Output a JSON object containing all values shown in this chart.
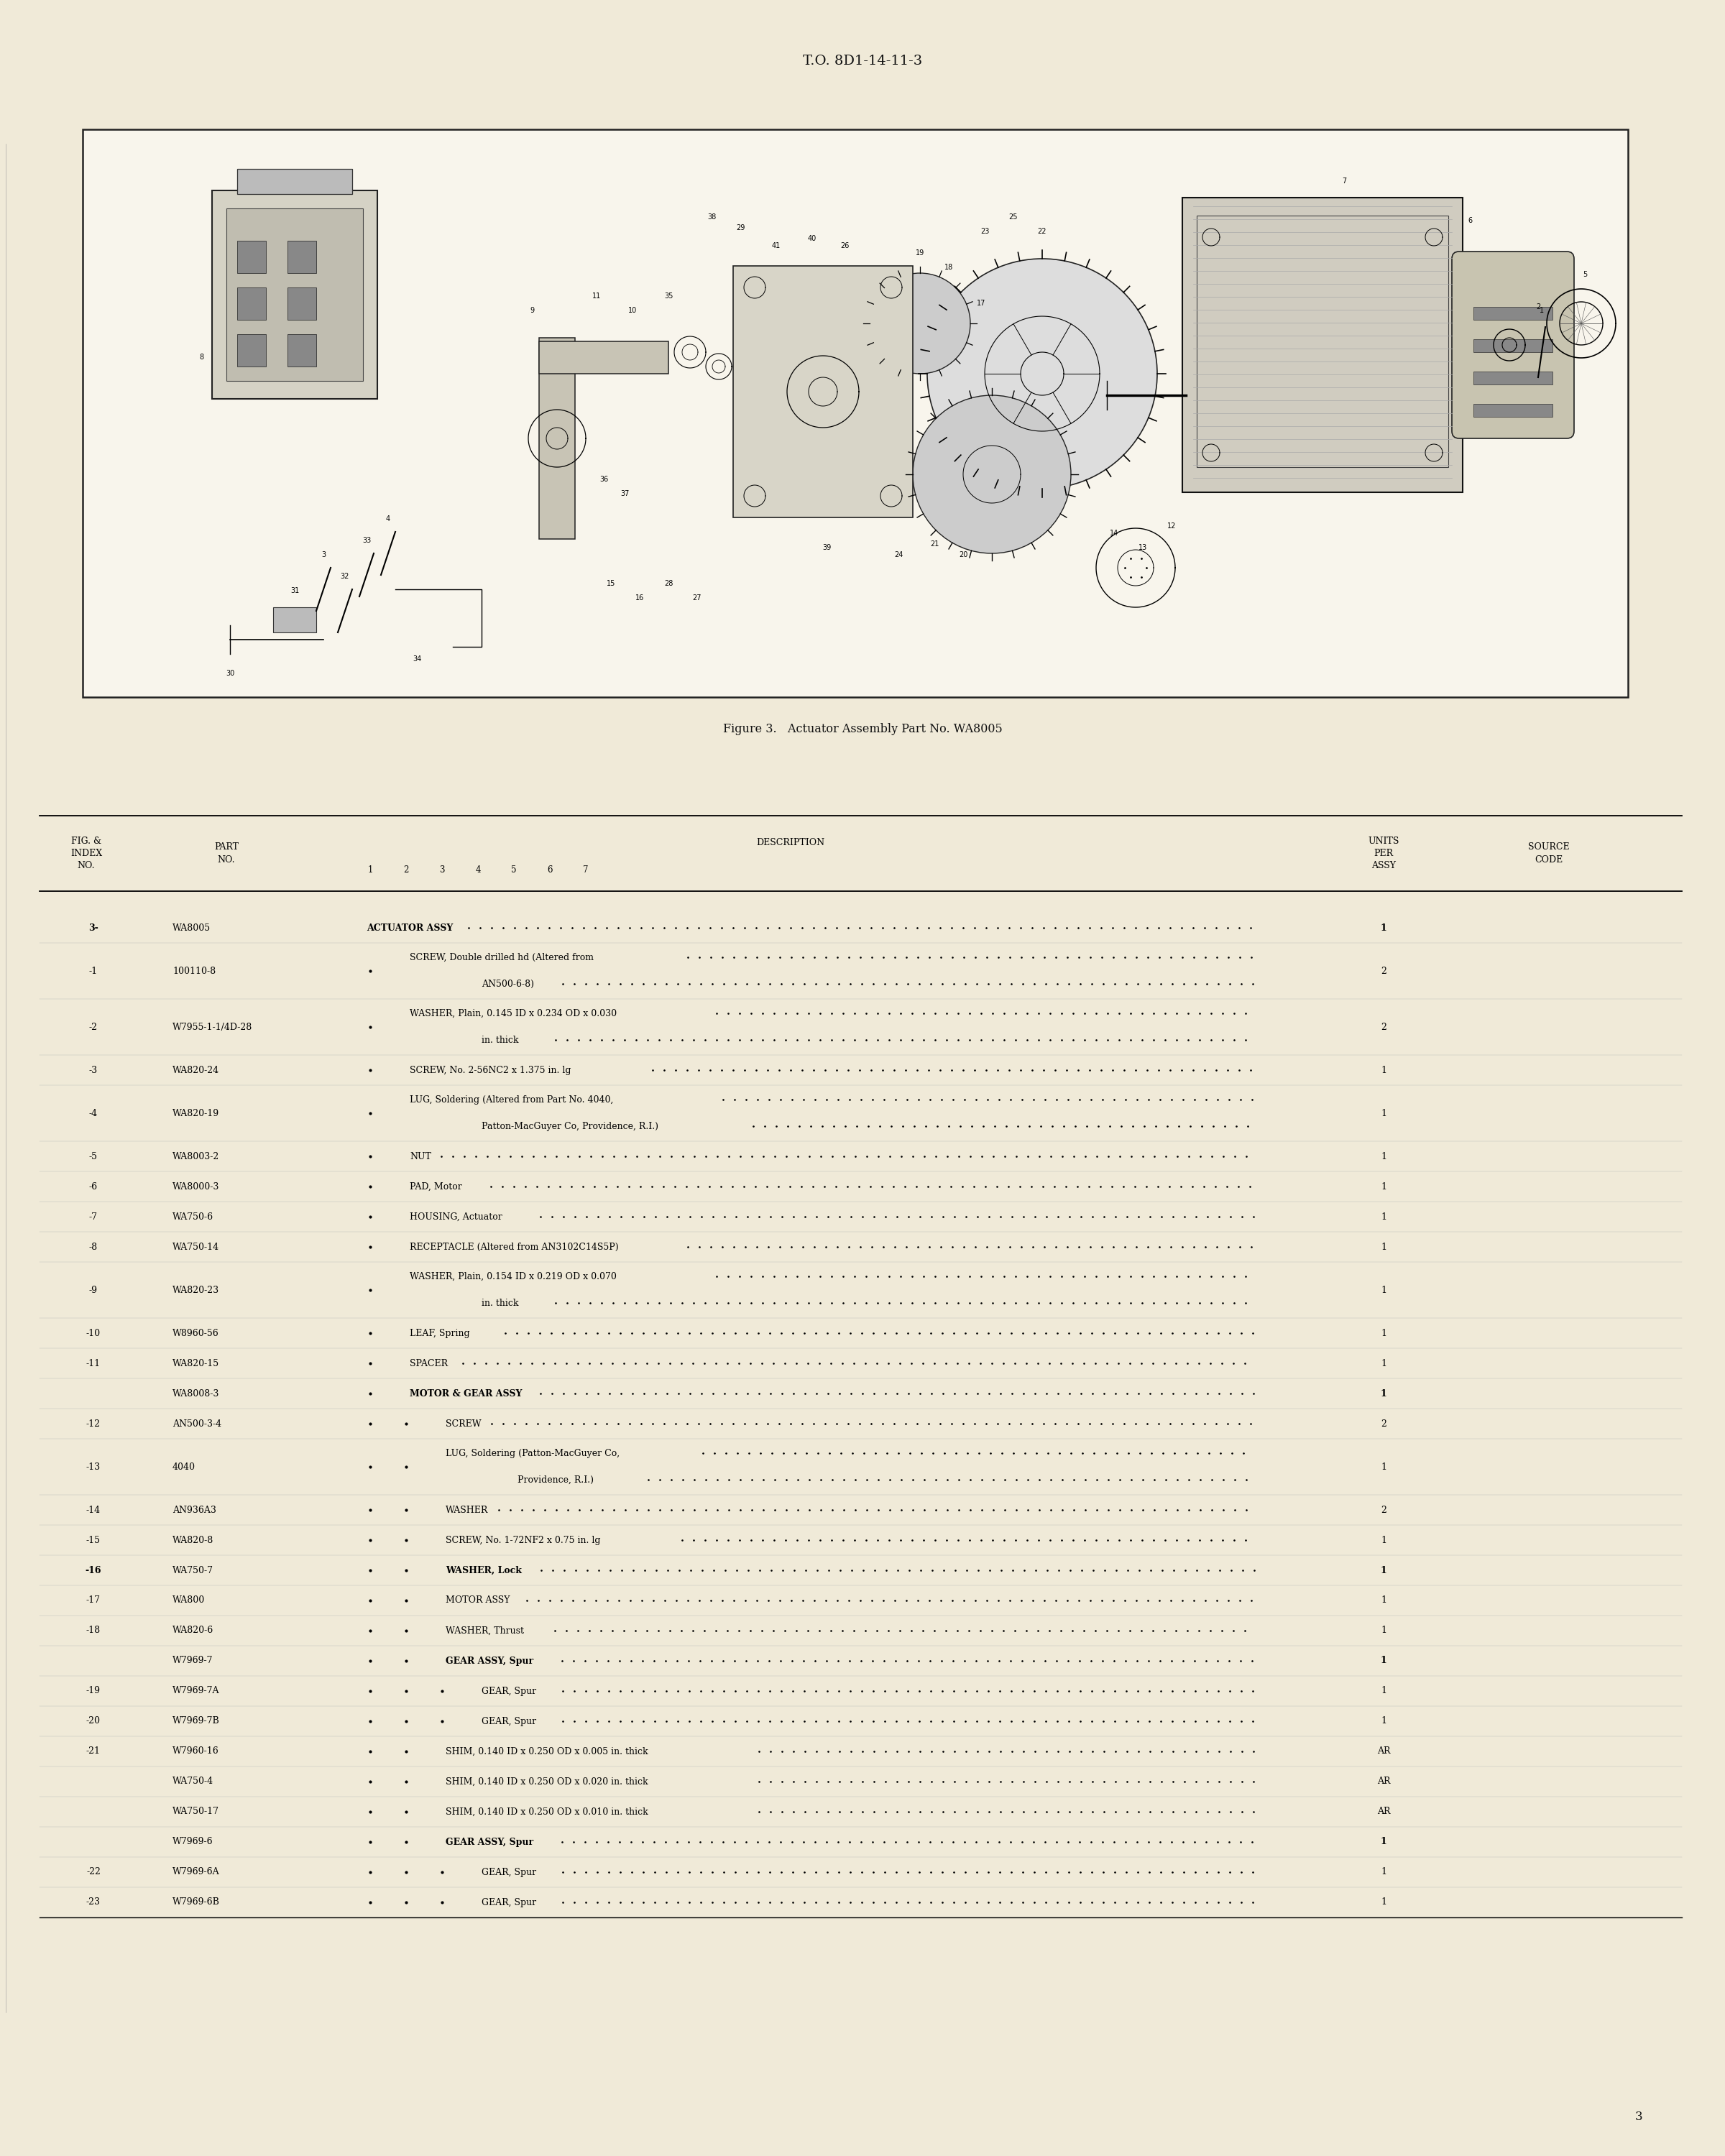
{
  "page_bg": "#f0ead8",
  "header_text": "T.O. 8D1-14-11-3",
  "figure_caption": "Figure 3.   Actuator Assembly Part No. WA8005",
  "page_number": "3",
  "table_rows": [
    [
      "3-",
      "WA8005",
      0,
      "ACTUATOR ASSY",
      "1"
    ],
    [
      "-1",
      "100110-8",
      1,
      "SCREW, Double drilled hd (Altered from\nAN500-6-8)",
      "2"
    ],
    [
      "-2",
      "W7955-1-1/4D-28",
      1,
      "WASHER, Plain, 0.145 ID x 0.234 OD x 0.030\nin. thick",
      "2"
    ],
    [
      "-3",
      "WA820-24",
      1,
      "SCREW, No. 2-56NC2 x 1.375 in. lg",
      "1"
    ],
    [
      "-4",
      "WA820-19",
      1,
      "LUG, Soldering (Altered from Part No. 4040,\nPatton-MacGuyer Co, Providence, R.I.)",
      "1"
    ],
    [
      "-5",
      "WA8003-2",
      1,
      "NUT",
      "1"
    ],
    [
      "-6",
      "WA8000-3",
      1,
      "PAD, Motor",
      "1"
    ],
    [
      "-7",
      "WA750-6",
      1,
      "HOUSING, Actuator",
      "1"
    ],
    [
      "-8",
      "WA750-14",
      1,
      "RECEPTACLE (Altered from AN3102C14S5P)",
      "1"
    ],
    [
      "-9",
      "WA820-23",
      1,
      "WASHER, Plain, 0.154 ID x 0.219 OD x 0.070\nin. thick",
      "1"
    ],
    [
      "-10",
      "W8960-56",
      1,
      "LEAF, Spring",
      "1"
    ],
    [
      "-11",
      "WA820-15",
      1,
      "SPACER",
      "1"
    ],
    [
      "",
      "WA8008-3",
      1,
      "MOTOR & GEAR ASSY",
      "1"
    ],
    [
      "-12",
      "AN500-3-4",
      2,
      "SCREW",
      "2"
    ],
    [
      "-13",
      "4040",
      2,
      "LUG, Soldering (Patton-MacGuyer Co,\nProvidence, R.I.)",
      "1"
    ],
    [
      "-14",
      "AN936A3",
      2,
      "WASHER",
      "2"
    ],
    [
      "-15",
      "WA820-8",
      2,
      "SCREW, No. 1-72NF2 x 0.75 in. lg",
      "1"
    ],
    [
      "-16",
      "WA750-7",
      2,
      "WASHER, Lock",
      "1"
    ],
    [
      "-17",
      "WA800",
      2,
      "MOTOR ASSY",
      "1"
    ],
    [
      "-18",
      "WA820-6",
      2,
      "WASHER, Thrust",
      "1"
    ],
    [
      "",
      "W7969-7",
      2,
      "GEAR ASSY, Spur",
      "1"
    ],
    [
      "-19",
      "W7969-7A",
      3,
      "GEAR, Spur",
      "1"
    ],
    [
      "-20",
      "W7969-7B",
      3,
      "GEAR, Spur",
      "1"
    ],
    [
      "-21",
      "W7960-16",
      2,
      "SHIM, 0.140 ID x 0.250 OD x 0.005 in. thick",
      "AR"
    ],
    [
      "",
      "WA750-4",
      2,
      "SHIM, 0.140 ID x 0.250 OD x 0.020 in. thick",
      "AR"
    ],
    [
      "",
      "WA750-17",
      2,
      "SHIM, 0.140 ID x 0.250 OD x 0.010 in. thick",
      "AR"
    ],
    [
      "",
      "W7969-6",
      2,
      "GEAR ASSY, Spur",
      "1"
    ],
    [
      "-22",
      "W7969-6A",
      3,
      "GEAR, Spur",
      "1"
    ],
    [
      "-23",
      "W7969-6B",
      3,
      "GEAR, Spur",
      "1"
    ]
  ],
  "bold_rows": [
    0,
    12,
    17,
    20,
    26
  ],
  "dot_col_positions": [
    1,
    2,
    3,
    4,
    5,
    6,
    7
  ],
  "col_x": {
    "fig_index": 0.55,
    "part_no": 2.2,
    "desc_col1_dot": 5.35,
    "desc_col2_dot": 5.85,
    "desc_col3_dot": 6.35,
    "col1": 5.35,
    "col2": 5.85,
    "col3": 6.35,
    "col4": 6.85,
    "col5": 7.35,
    "col6": 7.85,
    "col7": 8.35,
    "units": 9.6,
    "source": 11.0
  }
}
